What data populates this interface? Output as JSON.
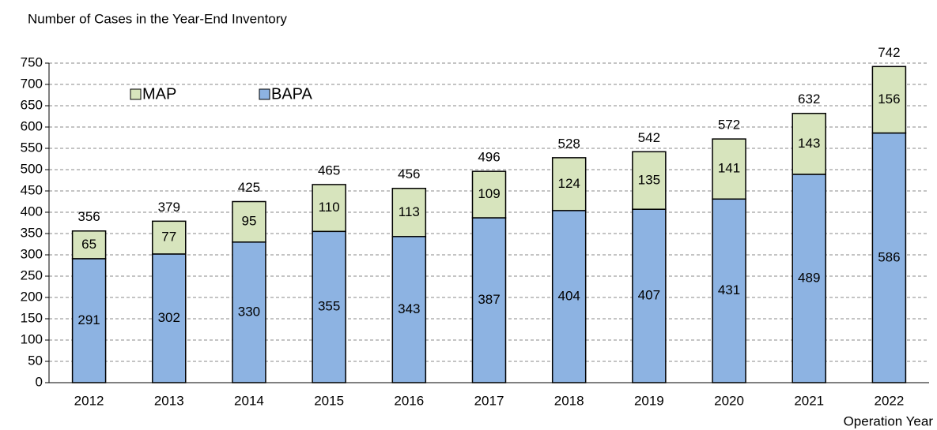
{
  "chart_data": {
    "type": "stacked_bar",
    "y_axis_title": "Number of Cases in the Year-End Inventory",
    "x_axis_title": "Operation Year",
    "categories": [
      "2012",
      "2013",
      "2014",
      "2015",
      "2016",
      "2017",
      "2018",
      "2019",
      "2020",
      "2021",
      "2022"
    ],
    "series": [
      {
        "name": "BAPA",
        "color": "#8db3e2",
        "values": [
          291,
          302,
          330,
          355,
          343,
          387,
          404,
          407,
          431,
          489,
          586
        ]
      },
      {
        "name": "MAP",
        "color": "#d7e4bd",
        "values": [
          65,
          77,
          95,
          110,
          113,
          109,
          124,
          135,
          141,
          143,
          156
        ]
      }
    ],
    "totals": [
      356,
      379,
      425,
      465,
      456,
      496,
      528,
      542,
      572,
      632,
      742
    ],
    "ylim": [
      0,
      750
    ],
    "yticks": [
      0,
      50,
      100,
      150,
      200,
      250,
      300,
      350,
      400,
      450,
      500,
      550,
      600,
      650,
      700,
      750
    ],
    "grid": true
  }
}
